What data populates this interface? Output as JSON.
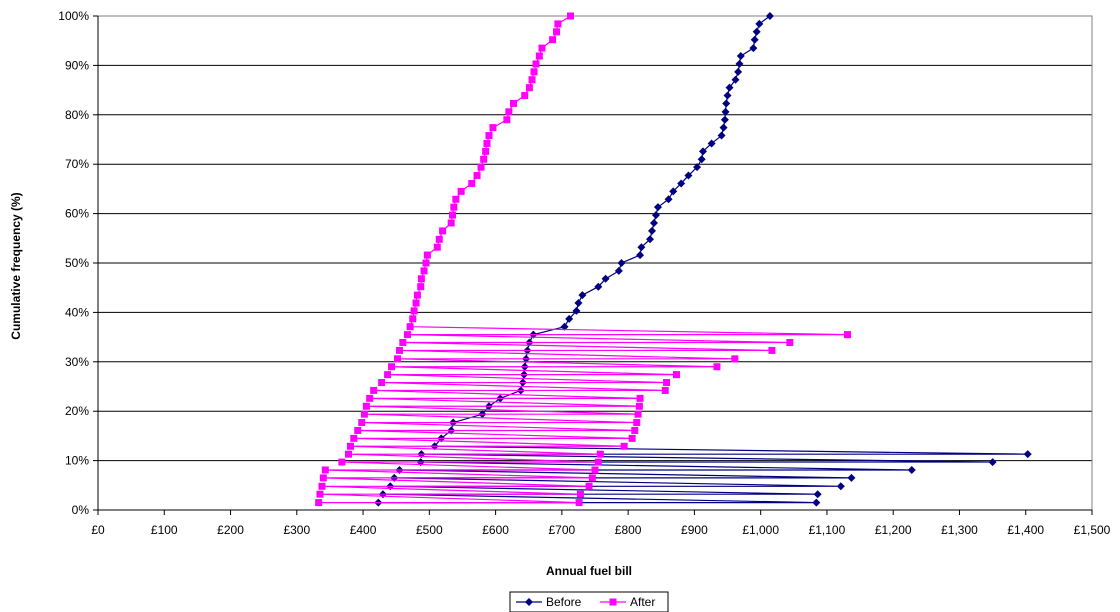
{
  "chart_data": {
    "type": "line",
    "xlabel": "Annual fuel bill",
    "ylabel": "Cumulative frequency (%)",
    "xlim": [
      0,
      1500
    ],
    "ylim": [
      0,
      100
    ],
    "x_ticks": [
      "£0",
      "£100",
      "£200",
      "£300",
      "£400",
      "£500",
      "£600",
      "£700",
      "£800",
      "£900",
      "£1,000",
      "£1,100",
      "£1,200",
      "£1,300",
      "£1,400",
      "£1,500"
    ],
    "y_ticks": [
      "0%",
      "10%",
      "20%",
      "30%",
      "40%",
      "50%",
      "60%",
      "70%",
      "80%",
      "90%",
      "100%"
    ],
    "grid": "horizontal",
    "legend_position": "bottom",
    "colors": {
      "Before": "#000080",
      "After": "#FF00FF"
    },
    "series": [
      {
        "name": "Before",
        "marker": "diamond",
        "x": [
          423,
          430,
          441,
          447,
          455,
          487,
          488,
          508,
          518,
          533,
          536,
          580,
          590,
          607,
          638,
          641,
          643,
          644,
          646,
          648,
          651,
          657,
          704,
          711,
          722,
          725,
          731,
          755,
          766,
          786,
          790,
          818,
          820,
          833,
          836,
          839,
          842,
          845,
          861,
          868,
          880,
          891,
          904,
          911,
          913,
          926,
          941,
          944,
          946,
          947,
          948,
          950,
          953,
          962,
          966,
          968,
          970,
          989,
          991,
          994,
          998,
          1014,
          1084,
          1086,
          1121,
          1137,
          1228,
          1350,
          1403
        ],
        "y": [
          1.5,
          3.2,
          4.8,
          6.5,
          8.1,
          9.7,
          11.3,
          12.9,
          14.5,
          16.1,
          17.7,
          19.4,
          21.0,
          22.6,
          24.2,
          25.8,
          27.4,
          29.0,
          30.6,
          32.3,
          33.9,
          35.5,
          37.1,
          38.7,
          40.3,
          41.9,
          43.5,
          45.2,
          46.8,
          48.4,
          50.0,
          51.6,
          53.2,
          54.8,
          56.5,
          58.1,
          59.7,
          61.3,
          62.9,
          64.5,
          66.1,
          67.7,
          69.4,
          71.0,
          72.6,
          74.2,
          75.8,
          77.4,
          79.0,
          80.6,
          82.3,
          83.9,
          85.5,
          87.1,
          88.7,
          90.3,
          91.9,
          93.5,
          95.2,
          96.8,
          98.4,
          100.0,
          1.5,
          3.2,
          4.8,
          6.5,
          8.1,
          9.7,
          11.3
        ]
      },
      {
        "name": "After",
        "marker": "square",
        "x": [
          333,
          335,
          338,
          340,
          343,
          368,
          378,
          381,
          386,
          392,
          398,
          402,
          405,
          410,
          416,
          428,
          437,
          443,
          452,
          455,
          460,
          467,
          471,
          475,
          477,
          480,
          482,
          487,
          488,
          492,
          495,
          497,
          512,
          515,
          520,
          533,
          535,
          537,
          540,
          548,
          564,
          572,
          578,
          582,
          585,
          587,
          590,
          596,
          617,
          620,
          627,
          644,
          651,
          655,
          658,
          661,
          666,
          670,
          686,
          692,
          694,
          713,
          726,
          728,
          741,
          746,
          750,
          755,
          758,
          794,
          806,
          810,
          813,
          815,
          817,
          818,
          856,
          858,
          873,
          934,
          961,
          1017,
          1044,
          1131
        ],
        "y": [
          1.5,
          3.2,
          4.8,
          6.5,
          8.1,
          9.7,
          11.3,
          12.9,
          14.5,
          16.1,
          17.7,
          19.4,
          21.0,
          22.6,
          24.2,
          25.8,
          27.4,
          29.0,
          30.6,
          32.3,
          33.9,
          35.5,
          37.1,
          38.7,
          40.3,
          41.9,
          43.5,
          45.2,
          46.8,
          48.4,
          50.0,
          51.6,
          53.2,
          54.8,
          56.5,
          58.1,
          59.7,
          61.3,
          62.9,
          64.5,
          66.1,
          67.7,
          69.4,
          71.0,
          72.6,
          74.2,
          75.8,
          77.4,
          79.0,
          80.6,
          82.3,
          83.9,
          85.5,
          87.1,
          88.7,
          90.3,
          91.9,
          93.5,
          95.2,
          96.8,
          98.4,
          100.0,
          1.5,
          3.2,
          4.8,
          6.5,
          8.1,
          9.7,
          11.3,
          12.9,
          14.5,
          16.1,
          17.7,
          19.4,
          21.0,
          22.6,
          24.2,
          25.8,
          27.4,
          29.0,
          30.6,
          32.3,
          33.9,
          35.5
        ]
      }
    ]
  }
}
